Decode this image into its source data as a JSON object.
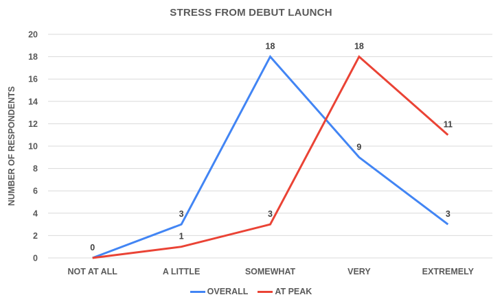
{
  "chart_data": {
    "type": "line",
    "title": "STRESS FROM DEBUT LAUNCH",
    "xlabel": "",
    "ylabel": "NUMBER OF RESPONDENTS",
    "categories": [
      "NOT AT ALL",
      "A LITTLE",
      "SOMEWHAT",
      "VERY",
      "EXTREMELY"
    ],
    "series": [
      {
        "name": "OVERALL",
        "color": "#4285f4",
        "values": [
          0,
          3,
          18,
          9,
          3
        ]
      },
      {
        "name": "AT PEAK",
        "color": "#ea4335",
        "values": [
          0,
          1,
          3,
          18,
          11
        ]
      }
    ],
    "ylim": [
      0,
      20
    ],
    "yticks": [
      0,
      2,
      4,
      6,
      8,
      10,
      12,
      14,
      16,
      18,
      20
    ],
    "grid": true,
    "legend_position": "bottom",
    "data_labels": true
  }
}
